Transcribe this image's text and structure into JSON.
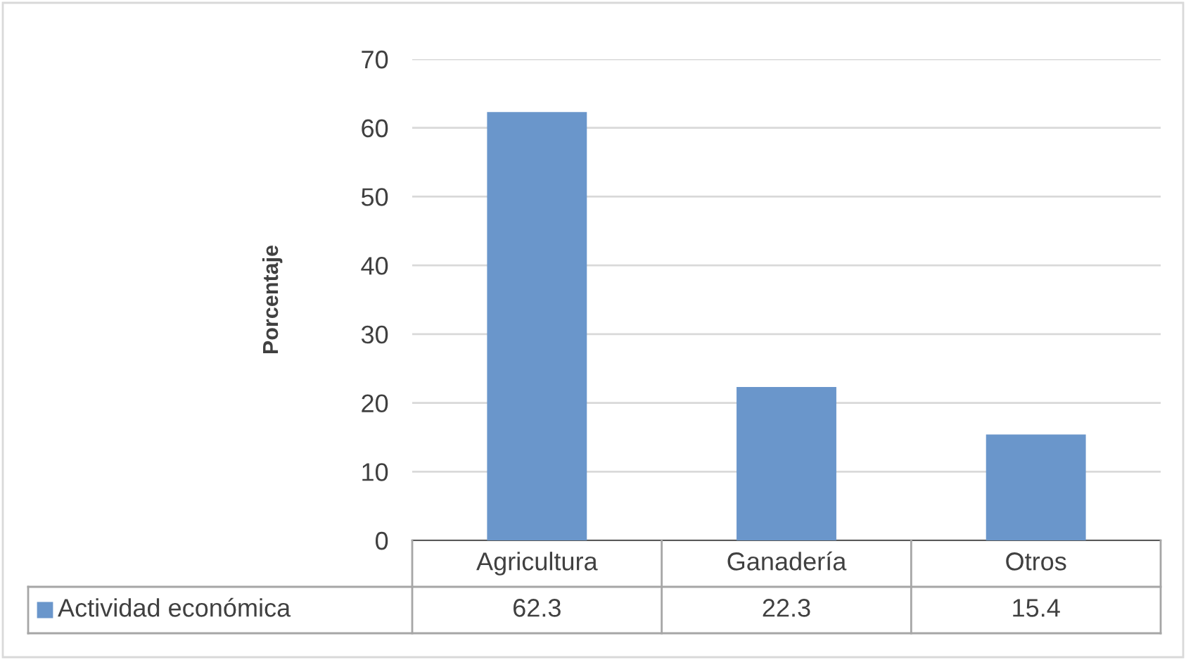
{
  "chart_data": {
    "type": "bar",
    "ylabel": "Porcentaje",
    "categories": [
      "Agricultura",
      "Ganadería",
      "Otros"
    ],
    "series": [
      {
        "name": "Actividad económica",
        "color": "#6a96cb",
        "values": [
          62.3,
          22.3,
          15.4
        ]
      }
    ],
    "ylim": [
      0,
      70
    ],
    "yticks": [
      0,
      10,
      20,
      30,
      40,
      50,
      60,
      70
    ],
    "grid": "y",
    "legend": "bottom",
    "data_labels": true
  }
}
